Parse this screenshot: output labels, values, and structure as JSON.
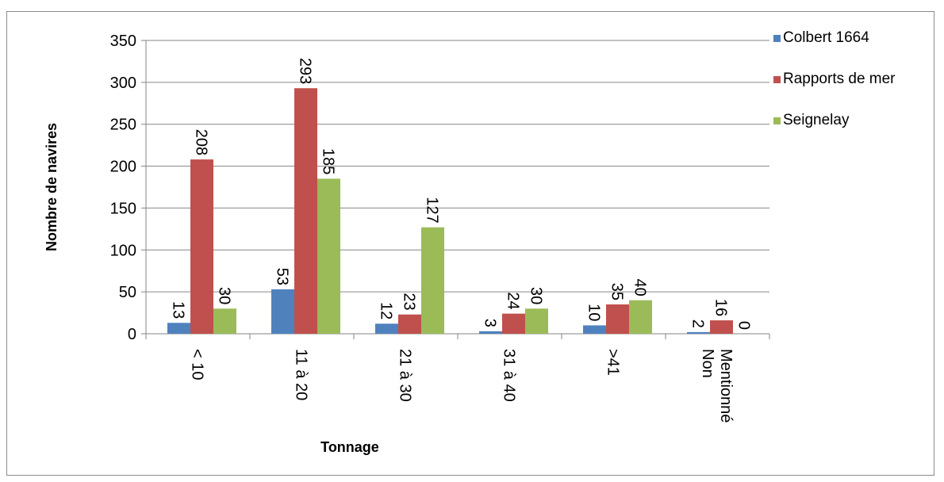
{
  "chart_data": {
    "type": "bar",
    "title": "",
    "xlabel": "Tonnage",
    "ylabel": "Nombre de navires",
    "ylim": [
      0,
      350
    ],
    "yticks": [
      0,
      50,
      100,
      150,
      200,
      250,
      300,
      350
    ],
    "grid": true,
    "legend_position": "right",
    "categories": [
      "< 10",
      "11 à 20",
      "21 à 30",
      "31 à 40",
      ">41",
      "Non Mentionné"
    ],
    "series": [
      {
        "name": "Colbert 1664",
        "color": "#4F81BD",
        "values": [
          13,
          53,
          12,
          3,
          10,
          2
        ]
      },
      {
        "name": "Rapports de mer",
        "color": "#C0504D",
        "values": [
          208,
          293,
          23,
          24,
          35,
          16
        ]
      },
      {
        "name": "Seignelay",
        "color": "#9BBB59",
        "values": [
          30,
          185,
          127,
          30,
          40,
          0
        ]
      }
    ]
  }
}
